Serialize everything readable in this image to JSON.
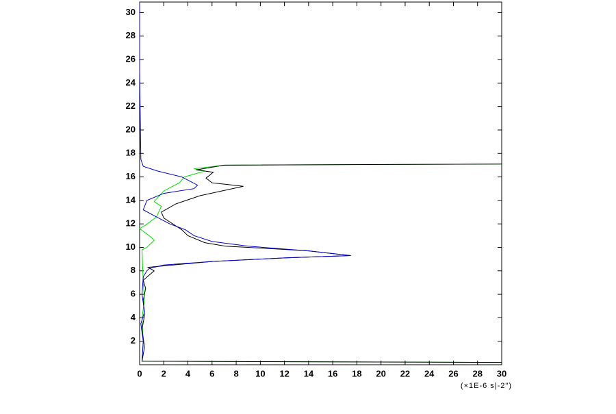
{
  "chart_data": {
    "type": "line",
    "x_label": "(×1E-6 s|-2\")",
    "xlim": [
      0,
      30
    ],
    "xticks": [
      0,
      2,
      4,
      6,
      8,
      10,
      12,
      14,
      16,
      18,
      20,
      22,
      24,
      26,
      28,
      30
    ],
    "ylim": [
      0,
      30.9
    ],
    "yticks": [
      2,
      4,
      6,
      8,
      10,
      12,
      14,
      16,
      18,
      20,
      22,
      24,
      26,
      28,
      30
    ],
    "series": [
      {
        "color": "#00dd00",
        "values": [
          30,
          0.2,
          0.3,
          0.2,
          0.4,
          0.3,
          0.2,
          0.6,
          1.2,
          0.9,
          0.0,
          0.5,
          1.4,
          1.8,
          1.2,
          2.0,
          3.3,
          3.7,
          5.4,
          4.5,
          7.0,
          30
        ],
        "y": [
          0.2,
          0.3,
          2.0,
          4.0,
          5.5,
          7.0,
          9.8,
          10.0,
          10.6,
          10.9,
          11.6,
          11.9,
          12.6,
          13.5,
          13.9,
          14.8,
          15.5,
          16.0,
          16.5,
          16.7,
          17.0,
          17.1
        ]
      },
      {
        "color": "#000000",
        "values": [
          30,
          0.2,
          0.4,
          0.2,
          0.4,
          0.3,
          0.5,
          0.3,
          1.2,
          0.7,
          6,
          12,
          17.5,
          14,
          9,
          7.1,
          5.4,
          4.0,
          3.5,
          2.0,
          1.8,
          3.0,
          5.0,
          8.6,
          6.0,
          5.5,
          6.1,
          4.7,
          7.0,
          30
        ],
        "y": [
          0.2,
          0.3,
          1.5,
          3.0,
          4.2,
          5.5,
          6.5,
          7.2,
          8.0,
          8.3,
          8.8,
          9.1,
          9.3,
          9.7,
          10.0,
          10.1,
          10.4,
          11.0,
          11.5,
          12.5,
          13.0,
          13.7,
          14.4,
          15.2,
          15.5,
          15.9,
          16.4,
          16.6,
          17.0,
          17.1
        ]
      },
      {
        "color": "#0000cc",
        "values": [
          0.2,
          0.3,
          0.1,
          0.4,
          0.2,
          0.3,
          0.6,
          0.8,
          2,
          6,
          12,
          17.5,
          14,
          9,
          6,
          4.5,
          3.8,
          2.5,
          1.2,
          0.3,
          0.6,
          2.0,
          4.5,
          4.8,
          3.5,
          1.5,
          0.3,
          0.1,
          0.0,
          0.0
        ],
        "y": [
          0.3,
          2.0,
          3.5,
          4.5,
          6.0,
          7.5,
          8.0,
          8.2,
          8.5,
          8.8,
          9.1,
          9.3,
          9.7,
          10.1,
          10.5,
          11.0,
          11.5,
          12.0,
          12.7,
          13.2,
          14.0,
          14.6,
          15.0,
          15.3,
          16.0,
          16.5,
          16.9,
          17.5,
          25.0,
          30.9
        ]
      }
    ]
  }
}
